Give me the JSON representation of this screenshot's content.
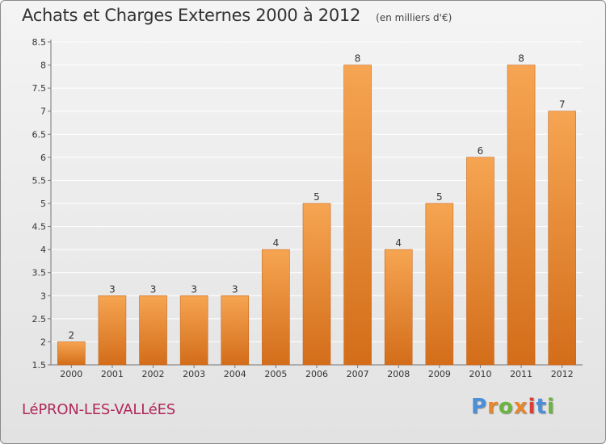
{
  "header": {
    "title": "Achats et Charges Externes 2000 à 2012",
    "unit": "(en milliers d'€)"
  },
  "footer": {
    "commune": "LéPRON-LES-VALLéES",
    "brand": [
      "P",
      "r",
      "o",
      "x",
      "i",
      "t",
      "i"
    ]
  },
  "colors": {
    "bar_top": "#f6a552",
    "bar_bottom": "#d36d1a",
    "bar_edge": "#c86a20",
    "commune": "#b0285a",
    "brand_letters": [
      "#4a8fd8",
      "#e8862a",
      "#6cb43f",
      "#e8862a",
      "#d8413a",
      "#4a8fd8",
      "#6cb43f"
    ]
  },
  "chart_data": {
    "type": "bar",
    "title": "Achats et Charges Externes 2000 à 2012",
    "subtitle": "(en milliers d'€)",
    "xlabel": "",
    "ylabel": "",
    "categories": [
      "2000",
      "2001",
      "2002",
      "2003",
      "2004",
      "2005",
      "2006",
      "2007",
      "2008",
      "2009",
      "2010",
      "2011",
      "2012"
    ],
    "values": [
      2,
      3,
      3,
      3,
      3,
      4,
      5,
      8,
      4,
      5,
      6,
      8,
      7
    ],
    "data_labels": [
      "2",
      "3",
      "3",
      "3",
      "3",
      "4",
      "5",
      "8",
      "4",
      "5",
      "6",
      "8",
      "7"
    ],
    "ylim": [
      1.5,
      8.5
    ],
    "yticks": [
      1.5,
      2,
      2.5,
      3,
      3.5,
      4,
      4.5,
      5,
      5.5,
      6,
      6.5,
      7,
      7.5,
      8,
      8.5
    ],
    "ytick_labels": [
      "1.5",
      "2",
      "2.5",
      "3",
      "3.5",
      "4",
      "4.5",
      "5",
      "5.5",
      "6",
      "6.5",
      "7",
      "7.5",
      "8",
      "8.5"
    ],
    "grid": "horizontal",
    "legend": "none"
  }
}
